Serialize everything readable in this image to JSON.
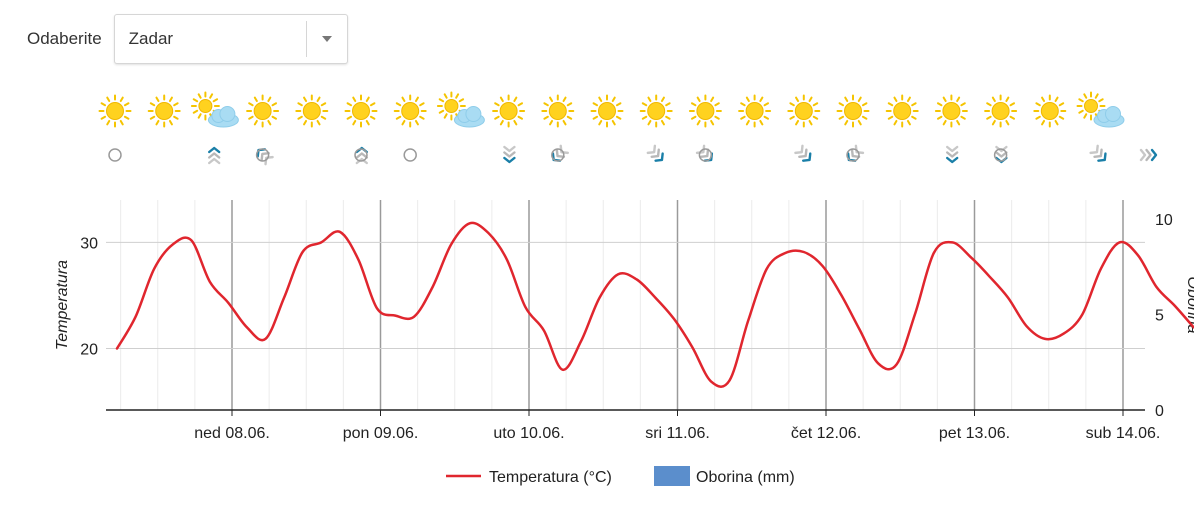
{
  "selector": {
    "label": "Odaberite",
    "value": "Zadar",
    "icon": "chevron-down-icon"
  },
  "weather_icons": [
    "sun",
    "sun",
    "sun-cloud",
    "sun",
    "sun",
    "sun",
    "sun",
    "sun-cloud",
    "sun",
    "sun",
    "sun",
    "sun",
    "sun",
    "sun",
    "sun",
    "sun",
    "sun",
    "sun",
    "sun",
    "sun",
    "sun-cloud"
  ],
  "wind_icons": [
    "calm",
    "north",
    "north-west",
    "calm",
    "north",
    "calm",
    "calm",
    "south",
    "south-west",
    "calm",
    "south-east",
    "south-east",
    "calm",
    "south-east",
    "south-west",
    "calm",
    "south",
    "south",
    "calm",
    "south-east",
    "east"
  ],
  "chart_data": {
    "type": "line",
    "x_start": "07.06. 18:00",
    "x_step_hours": 3,
    "x_tick_labels": [
      "ned 08.06.",
      "pon 09.06.",
      "uto 10.06.",
      "sri 11.06.",
      "čet 12.06.",
      "pet 13.06.",
      "sub 14.06."
    ],
    "y_left": {
      "title": "Temperatura",
      "ticks": [
        20,
        30
      ],
      "range": [
        14.2,
        34
      ]
    },
    "y_right": {
      "title": "Oborina",
      "ticks": [
        0,
        5,
        10
      ],
      "range": [
        0,
        11
      ]
    },
    "grid": true,
    "legend": "bottom-center",
    "series": [
      {
        "name": "Temperatura (°C)",
        "type": "line",
        "color": "#e0262e",
        "values": [
          20,
          23,
          27.5,
          29.8,
          30.2,
          26.3,
          24.3,
          22.0,
          20.9,
          24.8,
          29.1,
          30.0,
          31.0,
          28.4,
          23.8,
          23.1,
          23.0,
          25.8,
          29.8,
          31.8,
          30.9,
          28.4,
          23.9,
          21.7,
          18.0,
          20.7,
          24.8,
          27.0,
          26.5,
          24.8,
          22.8,
          20.1,
          16.9,
          17.0,
          22.6,
          27.5,
          29.0,
          29.1,
          27.8,
          25.1,
          21.8,
          18.6,
          18.5,
          23.3,
          29.0,
          30.0,
          28.6,
          26.8,
          24.8,
          22.1,
          20.9,
          21.4,
          23.2,
          27.5,
          30.0,
          28.8,
          25.8,
          24.0,
          22.0
        ]
      },
      {
        "name": "Oborina (mm)",
        "type": "bar",
        "color": "#5b8ecc",
        "values": [
          0,
          0,
          0,
          0,
          0,
          0,
          0,
          0,
          0,
          0,
          0,
          0,
          0,
          0,
          0,
          0,
          0,
          0,
          0,
          0,
          0,
          0,
          0,
          0,
          0,
          0,
          0,
          0,
          0,
          0,
          0,
          0,
          0,
          0,
          0,
          0,
          0,
          0,
          0,
          0,
          0,
          0,
          0,
          0,
          0,
          0,
          0,
          0,
          0,
          0,
          0,
          0,
          0,
          0,
          0,
          0,
          0,
          0,
          0
        ]
      }
    ]
  }
}
